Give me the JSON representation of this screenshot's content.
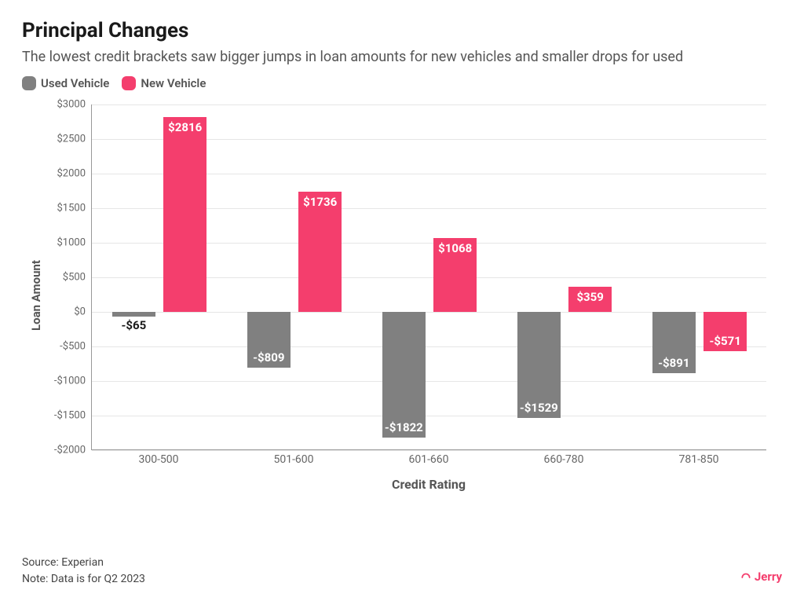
{
  "title": "Principal Changes",
  "subtitle": "The lowest credit brackets saw bigger jumps in loan amounts for new vehicles and smaller drops for used",
  "legend": [
    {
      "label": "Used Vehicle",
      "color": "#808080"
    },
    {
      "label": "New Vehicle",
      "color": "#f43e6d"
    }
  ],
  "chart": {
    "type": "bar-grouped",
    "ylabel": "Loan Amount",
    "xlabel": "Credit Rating",
    "ylim": [
      -2000,
      3000
    ],
    "ytick_step": 500,
    "grid_color": "#e6e6e6",
    "axis_color": "#999999",
    "background_color": "#ffffff",
    "bar_group_width": 0.7,
    "bar_gap": 0.06,
    "label_fontsize": 15,
    "tick_fontsize": 13,
    "title_fontsize": 26,
    "categories": [
      "300-500",
      "501-600",
      "601-660",
      "660-780",
      "781-850"
    ],
    "series": [
      {
        "name": "Used Vehicle",
        "color": "#808080",
        "values": [
          -65,
          -809,
          -1822,
          -1529,
          -891
        ],
        "value_labels": [
          "-$65",
          "-$809",
          "-$1822",
          "-$1529",
          "-$891"
        ],
        "label_color_pos": "#1a1a1a",
        "label_color_neg_inside": "#ffffff",
        "label_color_neg_outside": "#1a1a1a"
      },
      {
        "name": "New Vehicle",
        "color": "#f43e6d",
        "values": [
          2816,
          1736,
          1068,
          359,
          -571
        ],
        "value_labels": [
          "$2816",
          "$1736",
          "$1068",
          "$359",
          "-$571"
        ],
        "label_color_pos": "#ffffff",
        "label_color_neg_inside": "#ffffff",
        "label_color_neg_outside": "#ffffff"
      }
    ]
  },
  "footer": {
    "source": "Source: Experian",
    "note": "Note: Data is for Q2 2023"
  },
  "brand": {
    "name": "Jerry",
    "color": "#f43e6d"
  }
}
